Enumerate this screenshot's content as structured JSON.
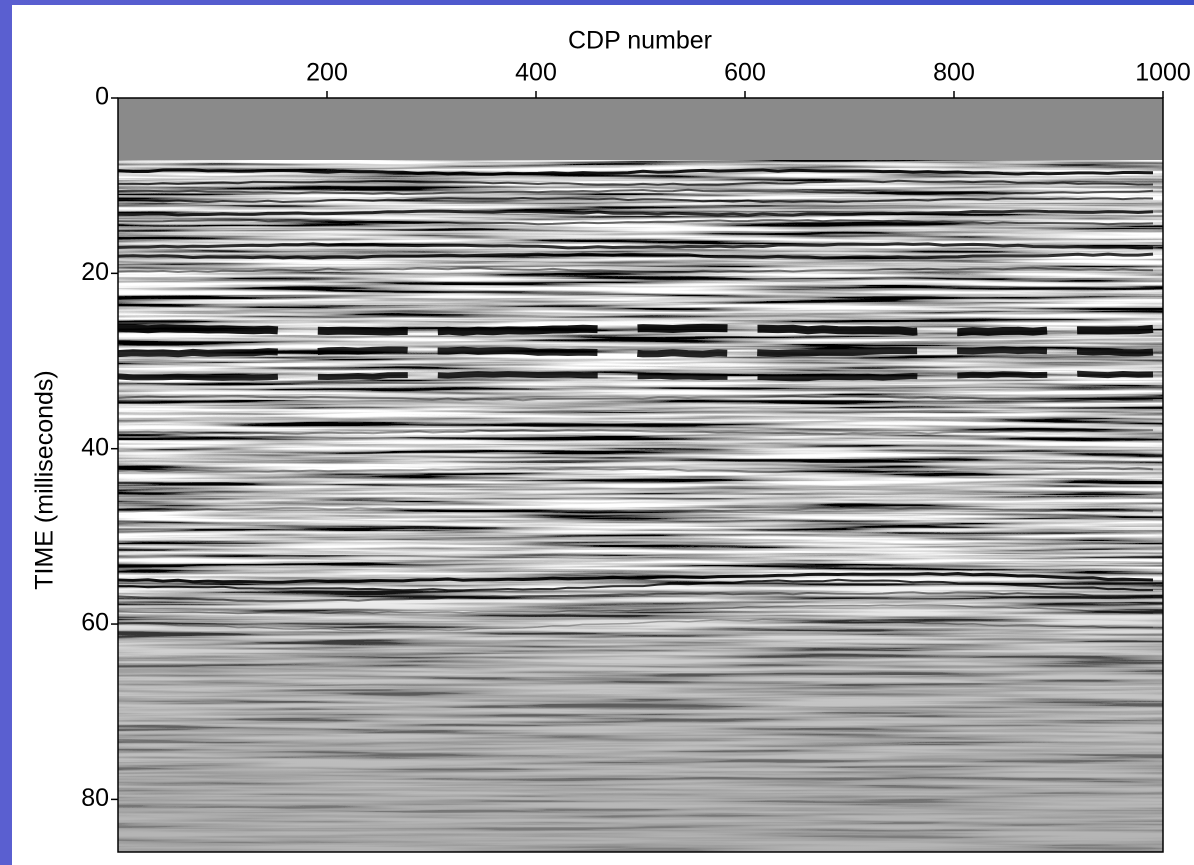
{
  "chart_data": {
    "type": "image",
    "x_label": "CDP number",
    "y_label": "TIME (milliseconds)",
    "xlim": [
      0,
      1000
    ],
    "ylim": [
      0,
      86
    ],
    "xticks": [
      200,
      400,
      600,
      800,
      1000
    ],
    "yticks": [
      0,
      20,
      40,
      60,
      80
    ],
    "x_axis_position": "top",
    "y_inverted": true
  }
}
